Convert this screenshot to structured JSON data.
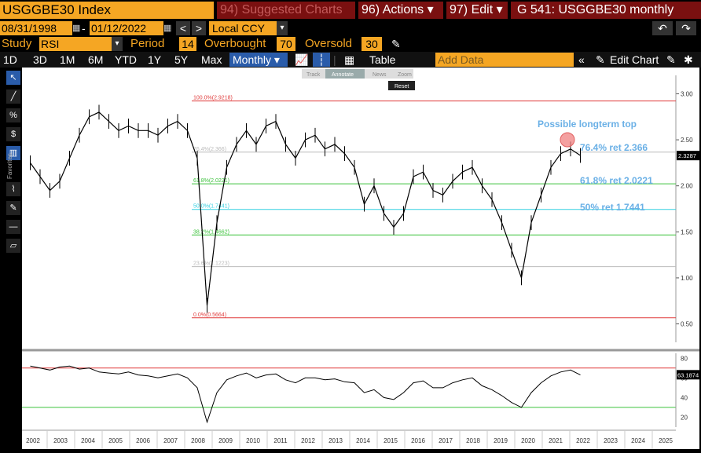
{
  "header": {
    "ticker": "USGGBE30 Index",
    "suggested": "94) Suggested Charts",
    "actions": "96) Actions ▾",
    "edit": "97) Edit ▾",
    "chart_title": "G 541: USGGBE30 monthly"
  },
  "dates": {
    "start": "08/31/1998",
    "end": "01/12/2022",
    "currency": "Local CCY"
  },
  "study": {
    "label": "Study",
    "name": "RSI",
    "period_label": "Period",
    "period": "14",
    "overbought_label": "Overbought",
    "overbought": "70",
    "oversold_label": "Oversold",
    "oversold": "30"
  },
  "toolbar": {
    "ranges": [
      "1D",
      "3D",
      "1M",
      "6M",
      "YTD",
      "1Y",
      "5Y",
      "Max"
    ],
    "frequency": "Monthly ▾",
    "table": "Table",
    "add_data": "Add Data",
    "edit_chart": "Edit Chart"
  },
  "mini_toolbar": {
    "track": "Track",
    "annotate": "Annotate",
    "news": "News",
    "zoom": "Zoom",
    "reset": "Reset"
  },
  "sidebar": {
    "favorites": "Favorites"
  },
  "chart_data": {
    "type": "line",
    "x_ticks": [
      "2002",
      "2003",
      "2004",
      "2005",
      "2006",
      "2007",
      "2008",
      "2009",
      "2010",
      "2011",
      "2012",
      "2013",
      "2014",
      "2015",
      "2016",
      "2017",
      "2018",
      "2019",
      "2020",
      "2021",
      "2022",
      "2023",
      "2024",
      "2025"
    ],
    "y_ticks": [
      "3.00",
      "2.50",
      "2.00",
      "1.50",
      "1.00",
      "0.50"
    ],
    "ylim": [
      0.3,
      3.2
    ],
    "rsi_ticks": [
      "80",
      "60",
      "40",
      "20"
    ],
    "last_price": "2.3287",
    "last_rsi": "63.1874",
    "fib_levels": [
      {
        "label": "100.0%(2.9218)",
        "value": 2.9218,
        "color": "#e03c3c"
      },
      {
        "label": "76.4%(2.366)",
        "value": 2.366,
        "color": "#bbbbbb"
      },
      {
        "label": "61.8%(2.0221)",
        "value": 2.0221,
        "color": "#3cc23c"
      },
      {
        "label": "50.0%(1.7441)",
        "value": 1.7441,
        "color": "#34d0e0"
      },
      {
        "label": "38.2%(1.4662)",
        "value": 1.4662,
        "color": "#3cc23c"
      },
      {
        "label": "23.6%(1.1223)",
        "value": 1.1223,
        "color": "#bbbbbb"
      },
      {
        "label": "0.0%(0.5664)",
        "value": 0.5664,
        "color": "#e03c3c"
      }
    ],
    "annotations": {
      "top": "Possible longterm top",
      "a764": "76.4% ret 2.366",
      "a618": "61.8% ret 2.0221",
      "a50": "50% ret 1.7441"
    },
    "series": [
      {
        "values": [
          2.25,
          2.1,
          1.95,
          2.05,
          2.3,
          2.55,
          2.75,
          2.8,
          2.7,
          2.6,
          2.65,
          2.6,
          2.6,
          2.55,
          2.65,
          2.7,
          2.6,
          2.3,
          0.7,
          1.6,
          2.2,
          2.45,
          2.6,
          2.45,
          2.65,
          2.7,
          2.45,
          2.3,
          2.5,
          2.55,
          2.4,
          2.45,
          2.35,
          2.2,
          1.8,
          2.0,
          1.7,
          1.55,
          1.7,
          2.1,
          2.15,
          1.95,
          1.9,
          2.05,
          2.15,
          2.2,
          2.0,
          1.85,
          1.6,
          1.3,
          1.0,
          1.6,
          1.9,
          2.2,
          2.35,
          2.4,
          2.33
        ]
      }
    ],
    "rsi": {
      "values": [
        72,
        70,
        68,
        71,
        72,
        69,
        70,
        66,
        65,
        64,
        66,
        63,
        62,
        60,
        62,
        64,
        60,
        50,
        15,
        45,
        58,
        62,
        65,
        60,
        63,
        64,
        58,
        55,
        60,
        60,
        58,
        59,
        56,
        55,
        45,
        48,
        40,
        38,
        45,
        55,
        57,
        50,
        50,
        55,
        58,
        60,
        52,
        48,
        42,
        35,
        30,
        45,
        55,
        62,
        66,
        68,
        63
      ]
    }
  }
}
